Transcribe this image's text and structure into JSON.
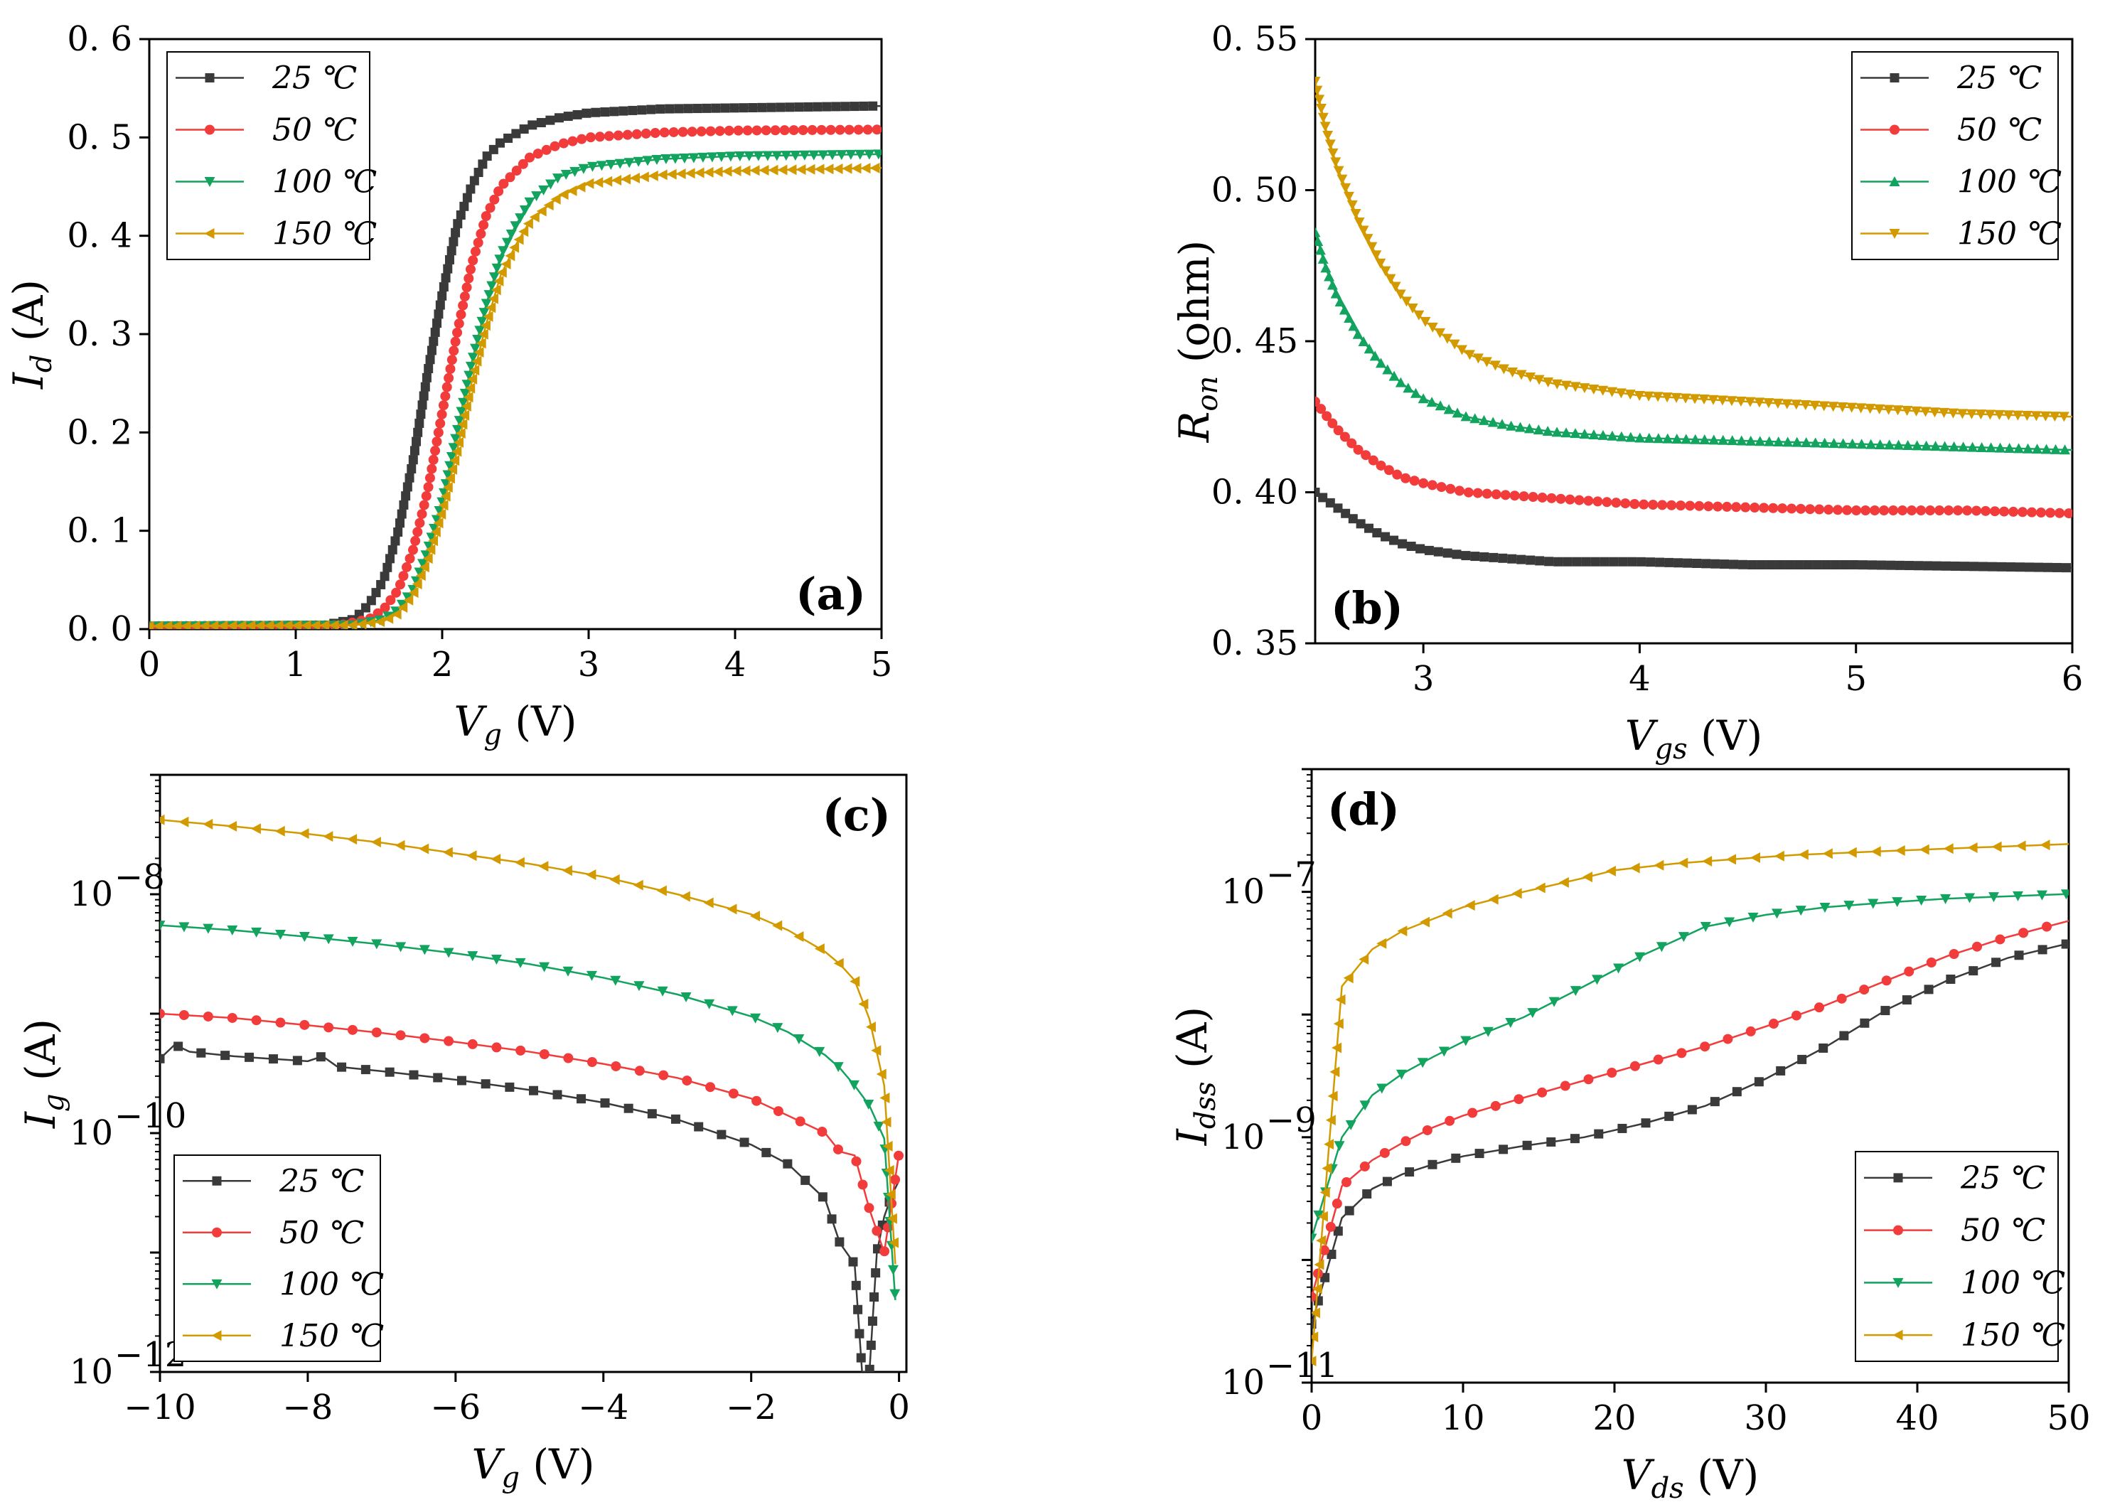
{
  "colors": {
    "t25": "#3a3a3a",
    "t50": "#f23b3b",
    "t100": "#12a35e",
    "t150": "#d39a00"
  },
  "legend_labels": [
    "25 ℃",
    "50 ℃",
    "100 ℃",
    "150 ℃"
  ],
  "chart_data": [
    {
      "id": "a",
      "type": "line",
      "panel_label": "(a)",
      "xlabel_main": "V",
      "xlabel_sub": "g",
      "xlabel_unit": " (V)",
      "ylabel_main": "I",
      "ylabel_sub": "d",
      "ylabel_unit": " (A)",
      "xlim": [
        0,
        5
      ],
      "ylim": [
        0,
        0.6
      ],
      "xticks": [
        0,
        1,
        2,
        3,
        4,
        5
      ],
      "xtick_labels": [
        "0",
        "1",
        "2",
        "3",
        "4",
        "5"
      ],
      "yticks": [
        0,
        0.1,
        0.2,
        0.3,
        0.4,
        0.5,
        0.6
      ],
      "ytick_labels": [
        "0. 0",
        "0. 1",
        "0. 2",
        "0. 3",
        "0. 4",
        "0. 5",
        "0. 6"
      ],
      "legend_position": "top-left",
      "series": [
        {
          "name": "25 ℃",
          "color": "#3a3a3a",
          "marker": "square",
          "x": [
            0,
            1.2,
            1.4,
            1.5,
            1.6,
            1.7,
            1.8,
            1.9,
            2.0,
            2.1,
            2.2,
            2.3,
            2.4,
            2.6,
            2.8,
            3.0,
            3.5,
            4.0,
            5.0
          ],
          "y": [
            0.003,
            0.004,
            0.01,
            0.025,
            0.05,
            0.1,
            0.17,
            0.26,
            0.34,
            0.41,
            0.45,
            0.48,
            0.495,
            0.512,
            0.52,
            0.525,
            0.529,
            0.53,
            0.532
          ]
        },
        {
          "name": "50 ℃",
          "color": "#f23b3b",
          "marker": "circle",
          "x": [
            0,
            1.3,
            1.5,
            1.6,
            1.7,
            1.8,
            1.9,
            2.0,
            2.1,
            2.2,
            2.3,
            2.4,
            2.6,
            2.8,
            3.0,
            3.5,
            4.0,
            5.0
          ],
          "y": [
            0.003,
            0.004,
            0.01,
            0.02,
            0.04,
            0.08,
            0.14,
            0.22,
            0.3,
            0.37,
            0.42,
            0.45,
            0.48,
            0.493,
            0.5,
            0.505,
            0.507,
            0.508
          ]
        },
        {
          "name": "100 ℃",
          "color": "#12a35e",
          "marker": "tri-down",
          "x": [
            0,
            1.4,
            1.6,
            1.7,
            1.8,
            1.9,
            2.0,
            2.1,
            2.2,
            2.3,
            2.4,
            2.5,
            2.6,
            2.8,
            3.0,
            3.5,
            4.0,
            5.0
          ],
          "y": [
            0.003,
            0.004,
            0.01,
            0.02,
            0.04,
            0.08,
            0.13,
            0.2,
            0.27,
            0.33,
            0.38,
            0.41,
            0.435,
            0.46,
            0.47,
            0.478,
            0.481,
            0.483
          ]
        },
        {
          "name": "150 ℃",
          "color": "#d39a00",
          "marker": "tri-left",
          "x": [
            0,
            1.4,
            1.6,
            1.7,
            1.8,
            1.9,
            2.0,
            2.1,
            2.2,
            2.3,
            2.4,
            2.5,
            2.6,
            2.8,
            3.0,
            3.5,
            4.0,
            5.0
          ],
          "y": [
            0.003,
            0.004,
            0.008,
            0.016,
            0.035,
            0.07,
            0.12,
            0.18,
            0.25,
            0.31,
            0.36,
            0.39,
            0.415,
            0.44,
            0.453,
            0.462,
            0.466,
            0.469
          ]
        }
      ]
    },
    {
      "id": "b",
      "type": "line",
      "panel_label": "(b)",
      "xlabel_main": "V",
      "xlabel_sub": "gs",
      "xlabel_unit": " (V)",
      "ylabel_main": "R",
      "ylabel_sub": "on",
      "ylabel_unit": " (ohm)",
      "xlim": [
        2.5,
        6
      ],
      "ylim": [
        0.35,
        0.55
      ],
      "xticks": [
        3,
        4,
        5,
        6
      ],
      "xtick_labels": [
        "3",
        "4",
        "5",
        "6"
      ],
      "yticks": [
        0.35,
        0.4,
        0.45,
        0.5,
        0.55
      ],
      "ytick_labels": [
        "0. 35",
        "0. 40",
        "0. 45",
        "0. 50",
        "0. 55"
      ],
      "legend_position": "top-right",
      "series": [
        {
          "name": "25 ℃",
          "color": "#3a3a3a",
          "marker": "square",
          "x": [
            2.5,
            2.6,
            2.7,
            2.8,
            2.9,
            3.0,
            3.2,
            3.4,
            3.6,
            4.0,
            4.5,
            5.0,
            5.5,
            6.0
          ],
          "y": [
            0.4,
            0.395,
            0.39,
            0.386,
            0.383,
            0.381,
            0.379,
            0.378,
            0.377,
            0.377,
            0.376,
            0.376,
            0.3755,
            0.375
          ]
        },
        {
          "name": "50 ℃",
          "color": "#f23b3b",
          "marker": "circle",
          "x": [
            2.5,
            2.6,
            2.7,
            2.8,
            2.9,
            3.0,
            3.2,
            3.4,
            3.6,
            4.0,
            4.5,
            5.0,
            5.5,
            6.0
          ],
          "y": [
            0.43,
            0.421,
            0.414,
            0.409,
            0.405,
            0.403,
            0.4,
            0.399,
            0.398,
            0.396,
            0.395,
            0.394,
            0.394,
            0.393
          ]
        },
        {
          "name": "100 ℃",
          "color": "#12a35e",
          "marker": "tri-up",
          "x": [
            2.5,
            2.55,
            2.6,
            2.7,
            2.8,
            2.9,
            3.0,
            3.2,
            3.4,
            3.6,
            4.0,
            4.5,
            5.0,
            5.5,
            6.0
          ],
          "y": [
            0.486,
            0.474,
            0.465,
            0.452,
            0.443,
            0.436,
            0.431,
            0.425,
            0.422,
            0.42,
            0.418,
            0.417,
            0.416,
            0.415,
            0.414
          ]
        },
        {
          "name": "150 ℃",
          "color": "#d39a00",
          "marker": "tri-down",
          "x": [
            2.5,
            2.55,
            2.6,
            2.7,
            2.8,
            2.9,
            3.0,
            3.2,
            3.4,
            3.6,
            4.0,
            4.5,
            5.0,
            5.5,
            6.0
          ],
          "y": [
            0.536,
            0.52,
            0.508,
            0.49,
            0.476,
            0.465,
            0.457,
            0.446,
            0.44,
            0.436,
            0.432,
            0.43,
            0.428,
            0.426,
            0.425
          ]
        }
      ]
    },
    {
      "id": "c",
      "type": "line",
      "panel_label": "(c)",
      "xlabel_main": "V",
      "xlabel_sub": "g",
      "xlabel_unit": " (V)",
      "ylabel_main": "I",
      "ylabel_sub": "g",
      "ylabel_unit": " (A)",
      "xscale": "linear",
      "yscale": "log",
      "xlim": [
        -10,
        0.1
      ],
      "ylim": [
        1e-12,
        1e-07
      ],
      "xticks": [
        -10,
        -8,
        -6,
        -4,
        -2,
        0
      ],
      "xtick_labels": [
        "−10",
        "−8",
        "−6",
        "−4",
        "−2",
        "0"
      ],
      "yticks": [
        -12,
        -10,
        -8
      ],
      "ytick_bases": [
        "10",
        "10",
        "10"
      ],
      "ytick_exps": [
        "−12",
        "−10",
        "−8"
      ],
      "legend_position": "bottom-left",
      "series": [
        {
          "name": "25 ℃",
          "color": "#3a3a3a",
          "marker": "square",
          "x": [
            -10,
            -9.8,
            -9.6,
            -9,
            -8,
            -7.8,
            -7.6,
            -7,
            -6,
            -5,
            -4,
            -3,
            -2,
            -1.5,
            -1,
            -0.8,
            -0.6,
            -0.5,
            -0.4,
            -0.3,
            -0.2,
            -0.1,
            0
          ],
          "y": [
            4.2e-10,
            5.5e-10,
            4.8e-10,
            4.4e-10,
            4e-10,
            4.4e-10,
            3.6e-10,
            3.3e-10,
            2.8e-10,
            2.3e-10,
            1.8e-10,
            1.3e-10,
            8e-11,
            5.5e-11,
            2.8e-11,
            1.2e-11,
            8e-12,
            1e-12,
            1e-12,
            1e-11,
            2e-11,
            3e-11,
            4e-11
          ]
        },
        {
          "name": "50 ℃",
          "color": "#f23b3b",
          "marker": "circle",
          "x": [
            -10,
            -9,
            -8,
            -7,
            -6,
            -5,
            -4,
            -3,
            -2,
            -1.5,
            -1,
            -0.8,
            -0.6,
            -0.4,
            -0.2,
            0
          ],
          "y": [
            1e-09,
            9.2e-10,
            8e-10,
            6.9e-10,
            5.8e-10,
            4.8e-10,
            3.8e-10,
            2.9e-10,
            1.95e-10,
            1.4e-10,
            1e-10,
            7e-11,
            6.5e-11,
            2.3e-11,
            1e-11,
            6.8e-11
          ]
        },
        {
          "name": "100 ℃",
          "color": "#12a35e",
          "marker": "tri-down",
          "x": [
            -10,
            -9,
            -8,
            -7,
            -6,
            -5,
            -4,
            -3,
            -2,
            -1.5,
            -1,
            -0.8,
            -0.6,
            -0.4,
            -0.2,
            -0.05
          ],
          "y": [
            5.5e-09,
            5e-09,
            4.4e-09,
            3.8e-09,
            3.2e-09,
            2.6e-09,
            2e-09,
            1.45e-09,
            9.5e-10,
            7e-10,
            4.5e-10,
            3.5e-10,
            2.5e-10,
            1.7e-10,
            9e-11,
            4e-12
          ]
        },
        {
          "name": "150 ℃",
          "color": "#d39a00",
          "marker": "tri-left",
          "x": [
            -10,
            -9,
            -8,
            -7,
            -6,
            -5,
            -4,
            -3,
            -2,
            -1.5,
            -1,
            -0.8,
            -0.6,
            -0.4,
            -0.2,
            -0.05
          ],
          "y": [
            4.2e-08,
            3.7e-08,
            3.2e-08,
            2.7e-08,
            2.2e-08,
            1.8e-08,
            1.4e-08,
            1e-08,
            6.8e-09,
            5e-09,
            3.3e-09,
            2.6e-09,
            1.9e-09,
            9e-10,
            2.5e-10,
            8e-12
          ]
        }
      ]
    },
    {
      "id": "d",
      "type": "line",
      "panel_label": "(d)",
      "xlabel_main": "V",
      "xlabel_sub": "ds",
      "xlabel_unit": " (V)",
      "ylabel_main": "I",
      "ylabel_sub": "dss",
      "ylabel_unit": " (A)",
      "xscale": "linear",
      "yscale": "log",
      "xlim": [
        0,
        50
      ],
      "ylim": [
        1e-11,
        1e-06
      ],
      "xticks": [
        0,
        10,
        20,
        30,
        40,
        50
      ],
      "xtick_labels": [
        "0",
        "10",
        "20",
        "30",
        "40",
        "50"
      ],
      "yticks": [
        -11,
        -9,
        -7
      ],
      "ytick_bases": [
        "10",
        "10",
        "10"
      ],
      "ytick_exps": [
        "−11",
        "−9",
        "−7"
      ],
      "legend_position": "bottom-right",
      "series": [
        {
          "name": "25 ℃",
          "color": "#3a3a3a",
          "marker": "square",
          "x": [
            0,
            2,
            4,
            6,
            8,
            10,
            14,
            18,
            22,
            26,
            30,
            34,
            38,
            42,
            46,
            50
          ],
          "y": [
            3e-11,
            2.2e-10,
            3.8e-10,
            5e-10,
            6e-10,
            7e-10,
            8.5e-10,
            1e-09,
            1.3e-09,
            1.8e-09,
            3e-09,
            5.5e-09,
            1.1e-08,
            1.9e-08,
            2.9e-08,
            3.8e-08
          ]
        },
        {
          "name": "50 ℃",
          "color": "#f23b3b",
          "marker": "circle",
          "x": [
            0,
            2,
            4,
            6,
            8,
            10,
            14,
            18,
            22,
            26,
            30,
            34,
            38,
            42,
            46,
            50
          ],
          "y": [
            5e-11,
            4e-10,
            6.5e-10,
            9e-10,
            1.2e-09,
            1.5e-09,
            2.1e-09,
            2.9e-09,
            4e-09,
            5.5e-09,
            8e-09,
            1.2e-08,
            1.9e-08,
            3e-08,
            4.3e-08,
            5.8e-08
          ]
        },
        {
          "name": "100 ℃",
          "color": "#12a35e",
          "marker": "tri-down",
          "x": [
            0,
            2,
            4,
            6,
            8,
            10,
            14,
            18,
            22,
            24,
            26,
            30,
            34,
            38,
            42,
            46,
            50
          ],
          "y": [
            1.5e-10,
            1e-09,
            2.2e-09,
            3.3e-09,
            4.5e-09,
            6e-09,
            9.5e-09,
            1.7e-08,
            3.1e-08,
            4e-08,
            5.2e-08,
            6.5e-08,
            7.5e-08,
            8.2e-08,
            8.8e-08,
            9.2e-08,
            9.6e-08
          ]
        },
        {
          "name": "150 ℃",
          "color": "#d39a00",
          "marker": "tri-left",
          "x": [
            0,
            2,
            4,
            6,
            8,
            10,
            14,
            18,
            20,
            24,
            28,
            32,
            36,
            40,
            44,
            48,
            50
          ],
          "y": [
            1.5e-11,
            1.7e-08,
            3.4e-08,
            4.8e-08,
            6e-08,
            7.5e-08,
            1e-07,
            1.3e-07,
            1.5e-07,
            1.7e-07,
            1.85e-07,
            2e-07,
            2.1e-07,
            2.2e-07,
            2.3e-07,
            2.4e-07,
            2.45e-07
          ]
        }
      ]
    }
  ]
}
